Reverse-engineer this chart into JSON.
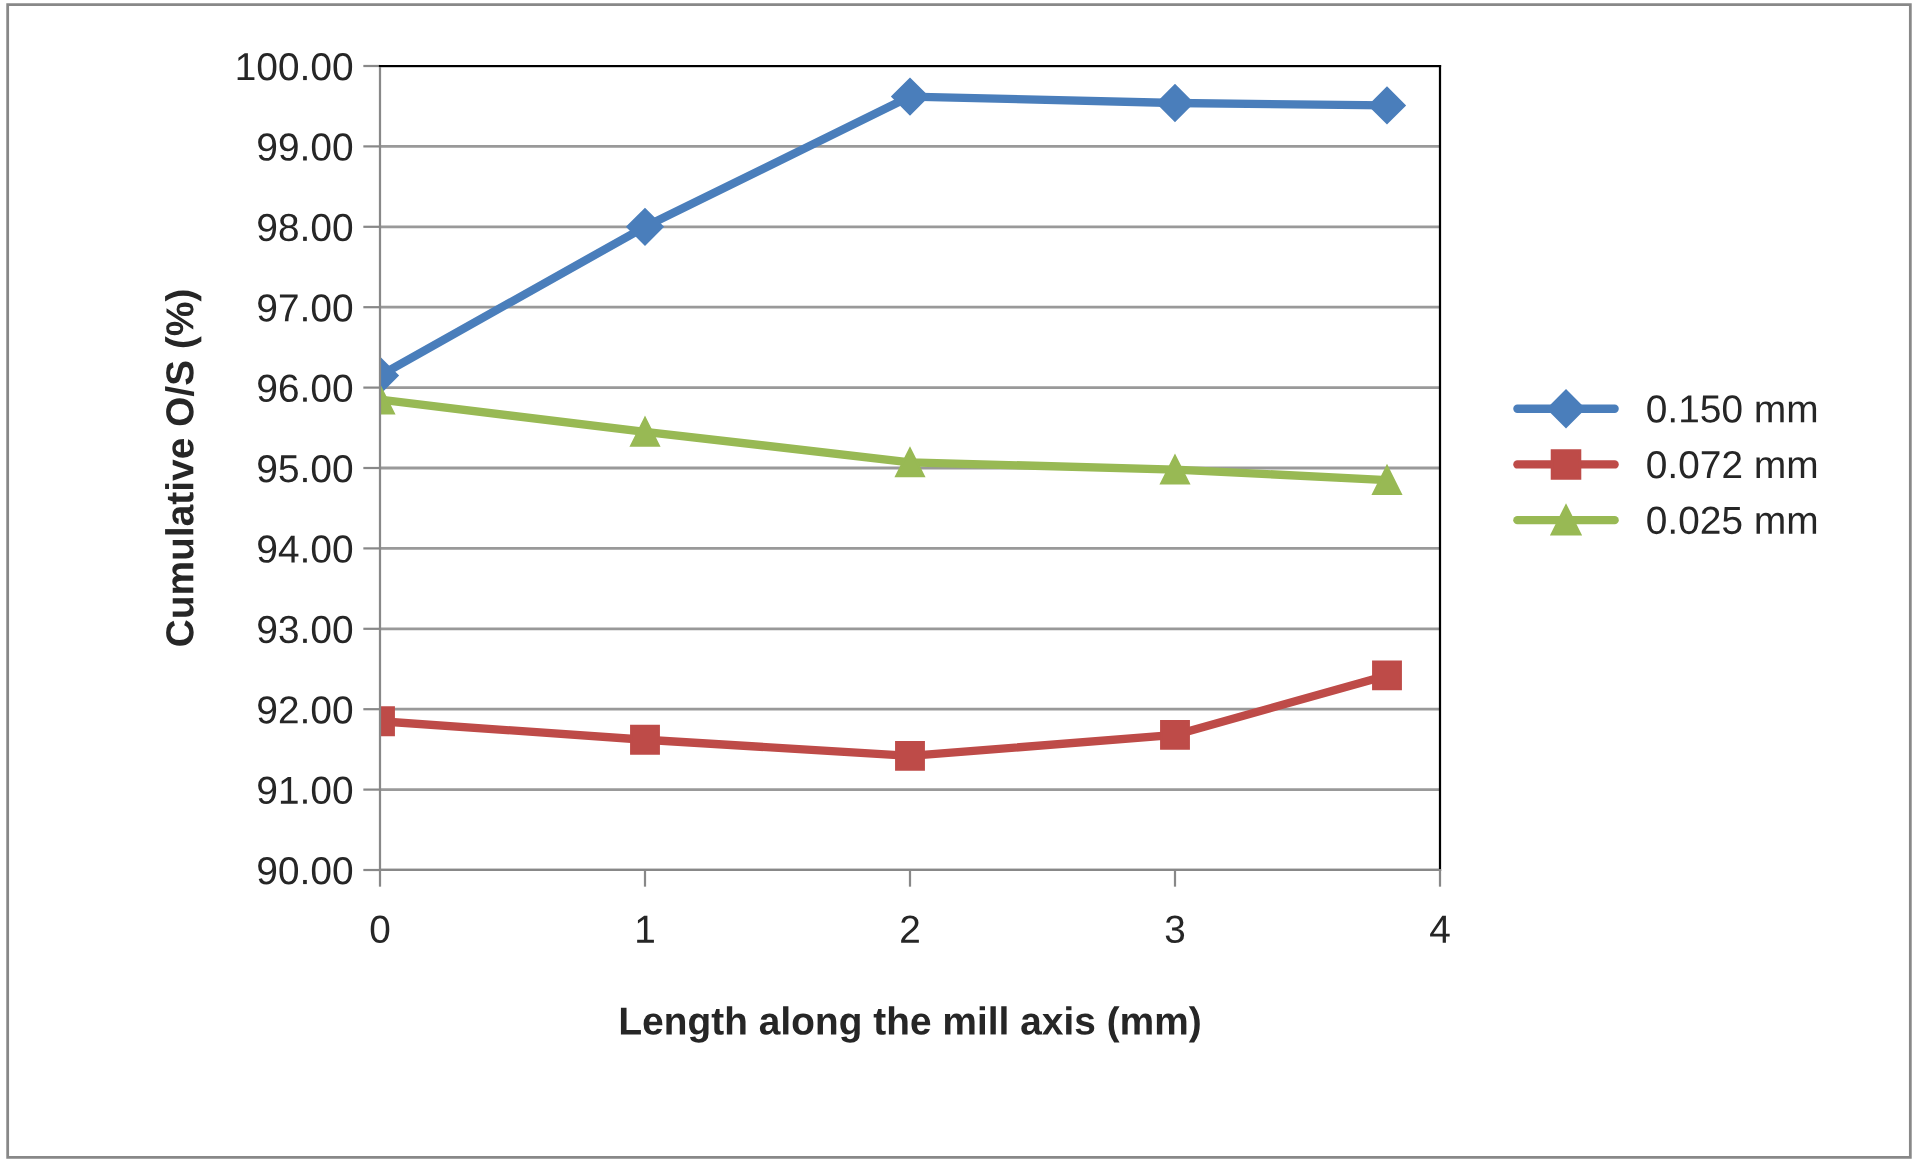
{
  "chart_data": {
    "type": "line",
    "xlabel": "Length along the mill axis (mm)",
    "ylabel": "Cumulative O/S (%)",
    "x": [
      0,
      1,
      2,
      3,
      3.8
    ],
    "series": [
      {
        "name": "0.150 mm",
        "color": "#4a7ebb",
        "marker": "diamond",
        "values": [
          96.15,
          98.0,
          99.62,
          99.54,
          99.51
        ]
      },
      {
        "name": "0.072 mm",
        "color": "#be4b48",
        "marker": "square",
        "values": [
          91.85,
          91.62,
          91.42,
          91.68,
          92.42
        ]
      },
      {
        "name": "0.025 mm",
        "color": "#98b954",
        "marker": "triangle",
        "values": [
          95.85,
          95.45,
          95.07,
          94.98,
          94.85
        ]
      }
    ],
    "xlim": [
      0,
      4
    ],
    "xticks": [
      0,
      1,
      2,
      3,
      4
    ],
    "ylim": [
      90,
      100
    ],
    "yticks": [
      {
        "value": 90,
        "label": "90.00"
      },
      {
        "value": 91,
        "label": "91.00"
      },
      {
        "value": 92,
        "label": "92.00"
      },
      {
        "value": 93,
        "label": "93.00"
      },
      {
        "value": 94,
        "label": "94.00"
      },
      {
        "value": 95,
        "label": "95.00"
      },
      {
        "value": 96,
        "label": "96.00"
      },
      {
        "value": 97,
        "label": "97.00"
      },
      {
        "value": 98,
        "label": "98.00"
      },
      {
        "value": 99,
        "label": "99.00"
      },
      {
        "value": 100,
        "label": "100.00"
      }
    ],
    "grid": "y",
    "legend": "right",
    "line_style": "solid"
  }
}
